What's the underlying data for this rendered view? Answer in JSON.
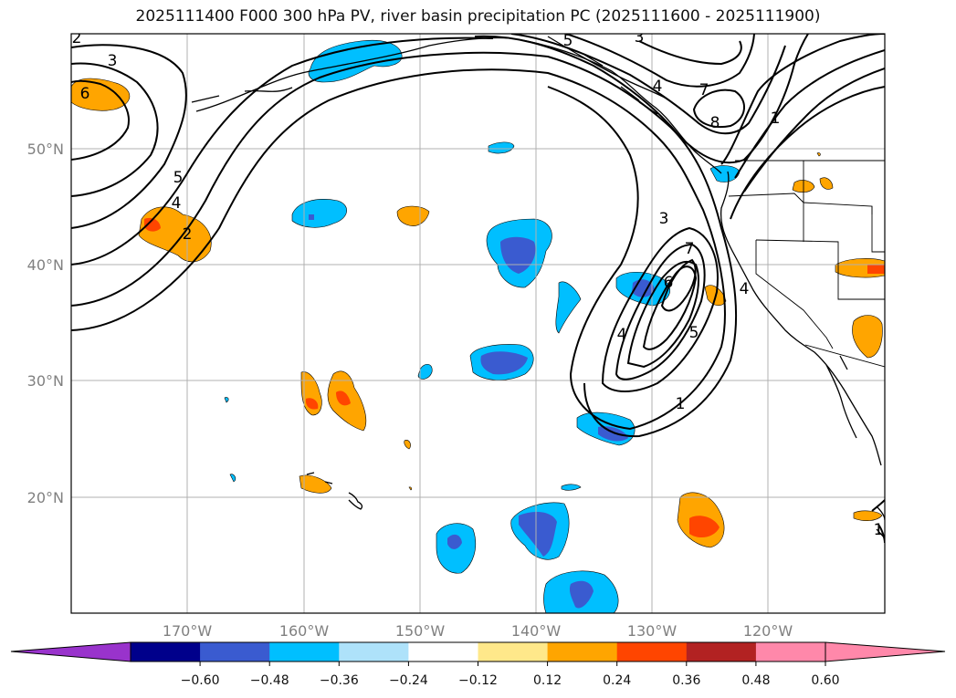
{
  "title": "2025111400 F000 300 hPa PV, river basin precipitation PC (2025111600 - 2025111900)",
  "latitude_labels": [
    "50°N",
    "40°N",
    "30°N",
    "20°N"
  ],
  "longitude_labels": [
    "170°W",
    "160°W",
    "150°W",
    "140°W",
    "130°W",
    "120°W"
  ],
  "contour_labels": [
    "2",
    "3",
    "6",
    "5",
    "4",
    "2",
    "5",
    "3",
    "7",
    "8",
    "1",
    "4",
    "3",
    "7",
    "6",
    "4",
    "5",
    "4",
    "1",
    "1"
  ],
  "colorbar": {
    "ticks": [
      "−0.60",
      "−0.48",
      "−0.36",
      "−0.24",
      "−0.12",
      "0.12",
      "0.24",
      "0.36",
      "0.48",
      "0.60"
    ],
    "colors": [
      "#9933cc",
      "#00008b",
      "#3a5bd0",
      "#00bfff",
      "#aee2fa",
      "#ffffff",
      "#ffe88a",
      "#ffa500",
      "#ff4500",
      "#b22222",
      "#ff88aa",
      "#ff88aa"
    ]
  }
}
